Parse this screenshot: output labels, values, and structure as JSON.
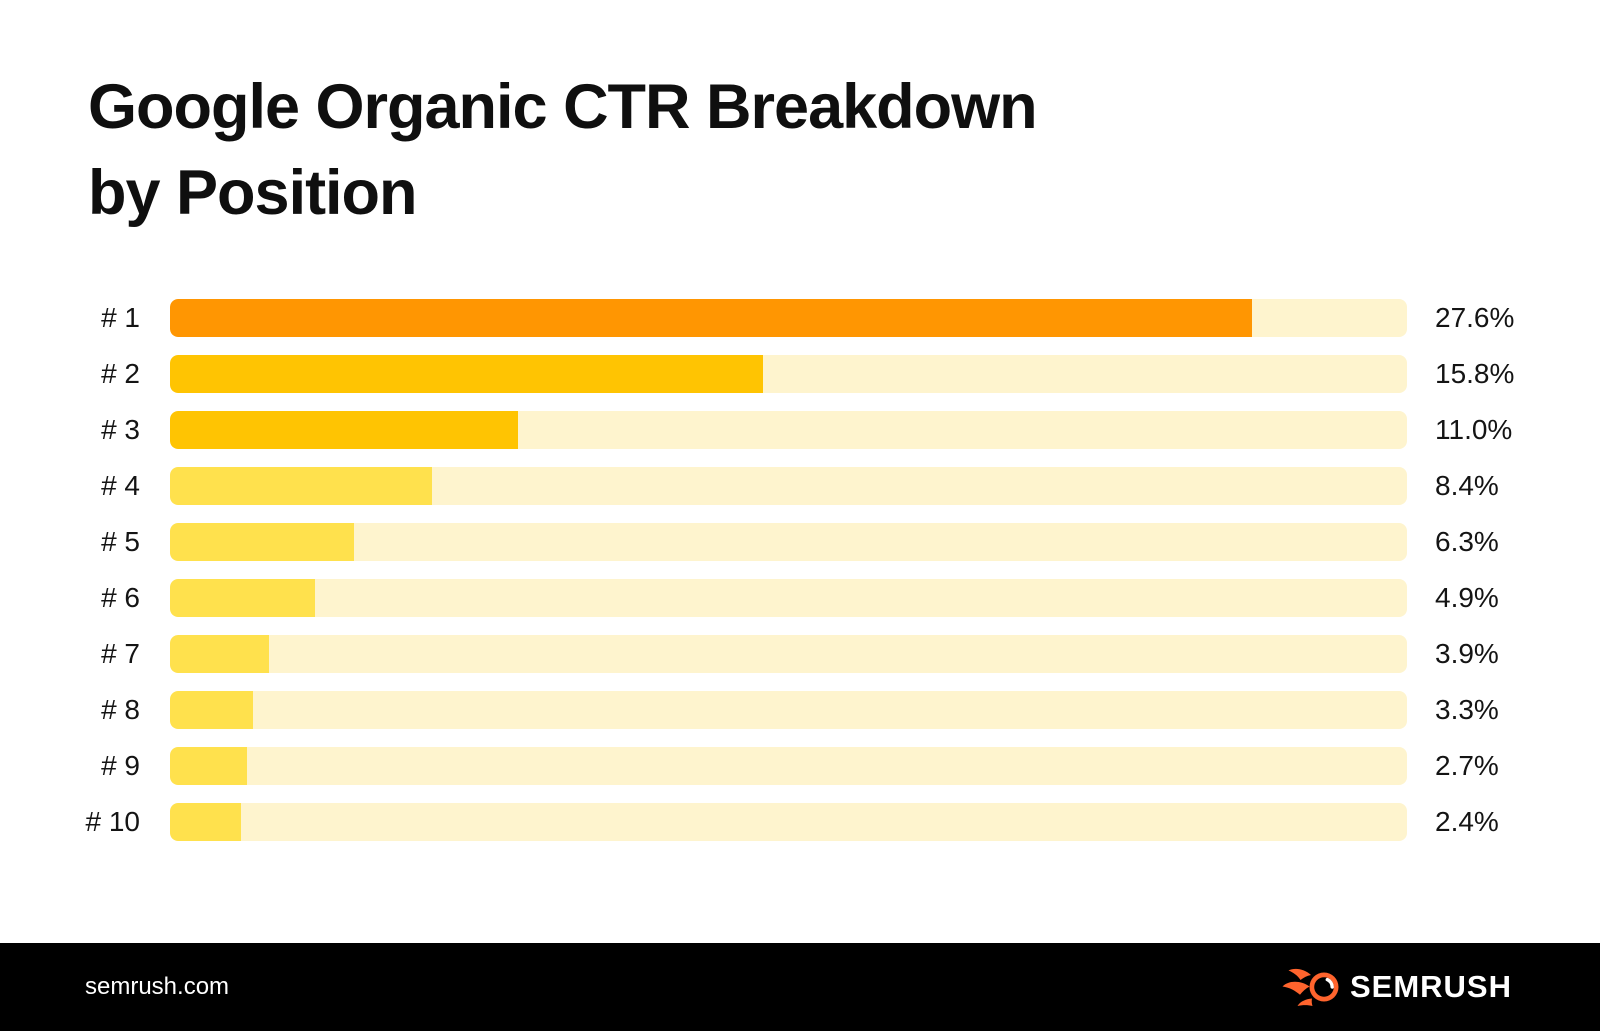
{
  "title": {
    "line1": "Google Organic CTR Breakdown",
    "line2": "by Position"
  },
  "chart_data": {
    "type": "bar",
    "orientation": "horizontal",
    "title": "Google Organic CTR Breakdown by Position",
    "categories": [
      "# 1",
      "# 2",
      "# 3",
      "# 4",
      "# 5",
      "# 6",
      "# 7",
      "# 8",
      "# 9",
      "# 10"
    ],
    "values": [
      27.6,
      15.8,
      11.0,
      8.4,
      6.3,
      4.9,
      3.9,
      3.3,
      2.7,
      2.4
    ],
    "value_labels": [
      "27.6%",
      "15.8%",
      "11.0%",
      "8.4%",
      "6.3%",
      "4.9%",
      "3.9%",
      "3.3%",
      "2.7%",
      "2.4%"
    ],
    "value_suffix": "%",
    "bar_width_pct": [
      87.5,
      47.9,
      28.1,
      21.2,
      14.9,
      11.7,
      8.0,
      6.7,
      6.2,
      5.7
    ],
    "bar_colors": [
      "#FF9602",
      "#FFC402",
      "#FFC402",
      "#FFE14D",
      "#FFE14D",
      "#FFE14D",
      "#FFE14D",
      "#FFE14D",
      "#FFE14D",
      "#FFE14D"
    ],
    "track_color": "#FEF4CE",
    "grid": false,
    "legend": false
  },
  "colors": {
    "title_text": "#0F0F0F",
    "label_text": "#141414",
    "footer_bg": "#000000",
    "footer_text": "#FFFFFF",
    "logo_flame": "#FF642D"
  },
  "footer": {
    "website": "semrush.com",
    "brand": "SEMRUSH",
    "logo_icon": "semrush-flame-icon"
  }
}
